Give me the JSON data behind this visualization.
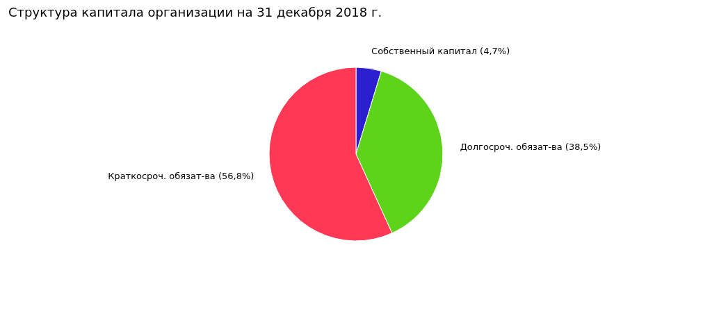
{
  "chart_data": {
    "type": "pie",
    "title": "Структура капитала организации на 31 декабря 2018 г.",
    "categories": [
      "Собственный капитал (4,7%)",
      "Долгосроч. обязат-ва (38,5%)",
      "Краткосроч. обязат-ва (56,8%)"
    ],
    "values": [
      4.7,
      38.5,
      56.8
    ],
    "colors": [
      "#2b1fd0",
      "#5dd41a",
      "#ff3855"
    ],
    "legend": false
  }
}
